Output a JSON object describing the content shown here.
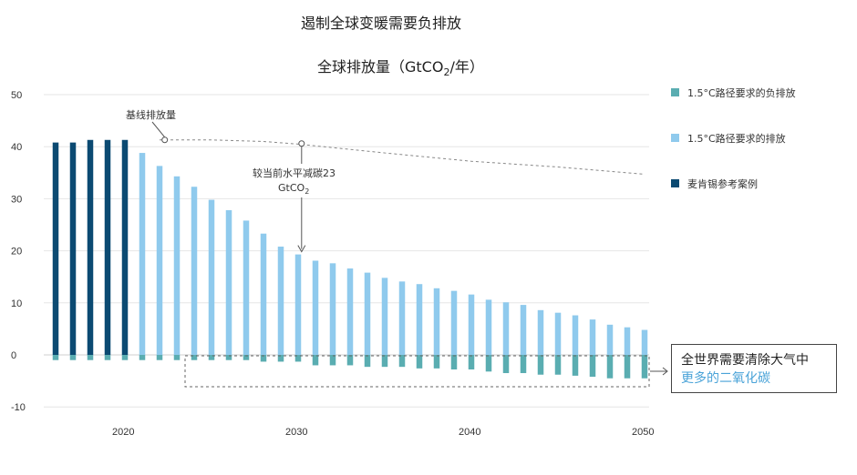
{
  "header": {
    "title": "遏制全球变暖需要负排放",
    "subtitle_main": "全球排放量（GtCO",
    "subtitle_sub": "2",
    "subtitle_tail": "/年）"
  },
  "colors": {
    "dark": "#0b4a72",
    "light": "#8fcaed",
    "teal": "#5aadb1",
    "baseline": "#888888"
  },
  "chart_data": {
    "type": "bar",
    "ylim": [
      -10,
      50
    ],
    "yticks": [
      "50",
      "40",
      "30",
      "20",
      "10",
      "0",
      "-10"
    ],
    "ytick_values": [
      50,
      40,
      30,
      20,
      10,
      0,
      -10
    ],
    "xticks": [
      "2020",
      "2030",
      "2040",
      "2050"
    ],
    "xtick_values": [
      2020,
      2030,
      2040,
      2050
    ],
    "series": [
      {
        "name": "麦肯锡参考案例",
        "color": "#0b4a72",
        "x": [
          2016,
          2017,
          2018,
          2019,
          2020
        ],
        "values": [
          40.8,
          40.8,
          41.3,
          41.3,
          41.3
        ]
      },
      {
        "name": "1.5°C路径要求的排放",
        "color": "#8fcaed",
        "x": [
          2021,
          2022,
          2023,
          2024,
          2025,
          2026,
          2027,
          2028,
          2029,
          2030,
          2031,
          2032,
          2033,
          2034,
          2035,
          2036,
          2037,
          2038,
          2039,
          2040,
          2041,
          2042,
          2043,
          2044,
          2045,
          2046,
          2047,
          2048,
          2049,
          2050
        ],
        "values": [
          38.8,
          36.3,
          34.3,
          32.3,
          29.8,
          27.8,
          25.8,
          23.3,
          20.8,
          19.3,
          18.1,
          17.6,
          16.6,
          15.8,
          14.8,
          14.1,
          13.6,
          12.8,
          12.3,
          11.6,
          10.6,
          10.1,
          9.6,
          8.6,
          8.1,
          7.6,
          6.8,
          5.8,
          5.3,
          4.8
        ]
      },
      {
        "name": "1.5°C路径要求的负排放",
        "color": "#5aadb1",
        "x": [
          2016,
          2017,
          2018,
          2019,
          2020,
          2021,
          2022,
          2023,
          2024,
          2025,
          2026,
          2027,
          2028,
          2029,
          2030,
          2031,
          2032,
          2033,
          2034,
          2035,
          2036,
          2037,
          2038,
          2039,
          2040,
          2041,
          2042,
          2043,
          2044,
          2045,
          2046,
          2047,
          2048,
          2049,
          2050
        ],
        "values": [
          -1,
          -1,
          -1,
          -1,
          -1,
          -1,
          -1,
          -1,
          -1,
          -1,
          -1,
          -1,
          -1.3,
          -1.3,
          -1.3,
          -2,
          -2,
          -2,
          -2.3,
          -2.3,
          -2.3,
          -2.6,
          -2.6,
          -2.8,
          -2.8,
          -3.2,
          -3.5,
          -3.5,
          -3.8,
          -3.8,
          -4,
          -4.2,
          -4.5,
          -4.5,
          -4.5
        ]
      },
      {
        "name": "基线排放量",
        "type": "line",
        "x": [
          2022,
          2025,
          2028,
          2030,
          2035,
          2040,
          2045,
          2050
        ],
        "values": [
          41.3,
          41.3,
          41.0,
          40.5,
          38.8,
          37.2,
          36.1,
          34.7
        ]
      }
    ],
    "legend": [
      "1.5°C路径要求的负排放",
      "1.5°C路径要求的排放",
      "麦肯锡参考案例"
    ],
    "legend_position": "right",
    "annotations": {
      "baseline_label": "基线排放量",
      "reduction_line1": "较当前水平减碳23",
      "reduction_line2_main": "GtCO",
      "reduction_line2_sub": "2"
    },
    "grid": true
  },
  "callout": {
    "line1": "全世界需要清除大气中",
    "line2": "更多的二氧化碳"
  }
}
